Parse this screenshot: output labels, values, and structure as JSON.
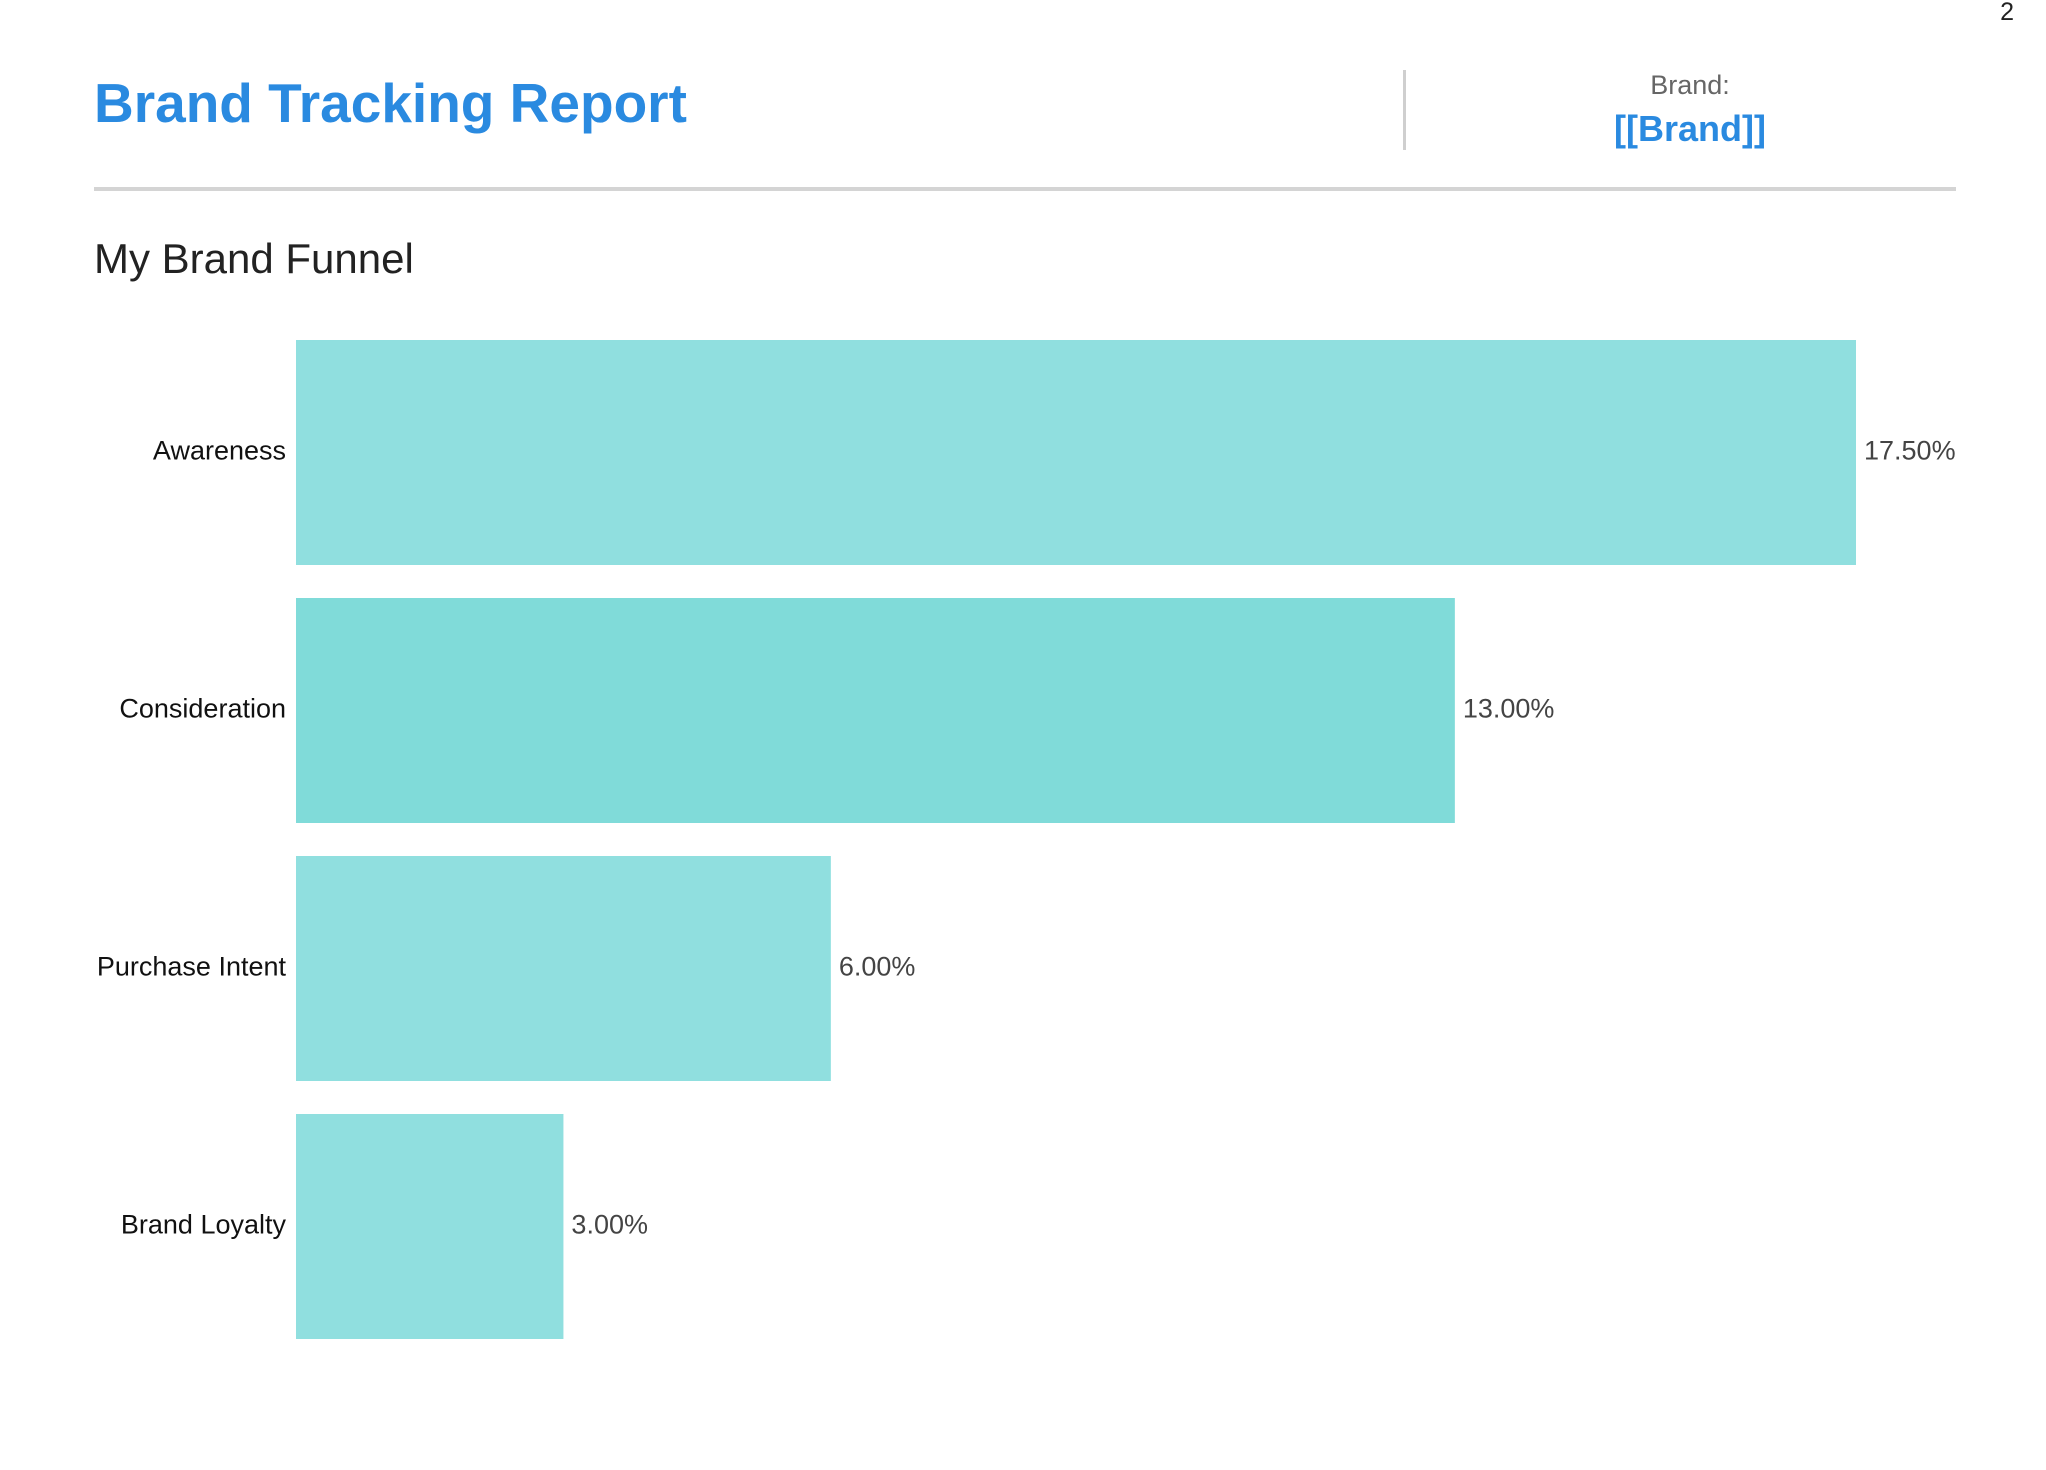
{
  "page": {
    "number": "2"
  },
  "header": {
    "title": "Brand Tracking Report",
    "brand_label": "Brand:",
    "brand_value": "[[Brand]]"
  },
  "colors": {
    "accent": "#2a8ae0",
    "bar_light": "#90dfdf",
    "bar_dark": "#80dbd9",
    "divider": "#d4d4d4"
  },
  "chart_data": {
    "type": "bar",
    "orientation": "horizontal",
    "title": "My Brand Funnel",
    "categories": [
      "Awareness",
      "Consideration",
      "Purchase Intent",
      "Brand Loyalty"
    ],
    "values": [
      17.5,
      13.0,
      6.0,
      3.0
    ],
    "value_labels": [
      "17.50%",
      "13.00%",
      "6.00%",
      "3.00%"
    ],
    "unit": "%",
    "xlim": [
      0,
      17.5
    ],
    "grid": false,
    "legend": "none"
  }
}
